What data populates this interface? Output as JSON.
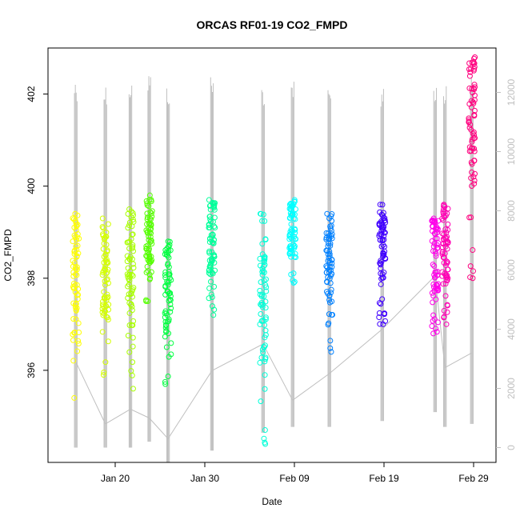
{
  "chart_data": {
    "type": "scatter",
    "title": "ORCAS RF01-19 CO2_FMPD",
    "xlabel": "Date",
    "ylabel": "CO2_FMPD",
    "x_ticks": [
      "Jan 20",
      "Jan 30",
      "Feb 09",
      "Feb 19",
      "Feb 29"
    ],
    "x_tick_days": [
      20,
      30,
      40,
      50,
      60
    ],
    "xlim_days": [
      12.5,
      62.5
    ],
    "ylim": [
      394.0,
      403.0
    ],
    "y_ticks": [
      396,
      398,
      400,
      402
    ],
    "y2_ticks": [
      0,
      2000,
      4000,
      6000,
      8000,
      10000,
      12000
    ],
    "y2_lim": [
      -500,
      13500
    ],
    "y2_color": "#bfbfbf",
    "flights": [
      {
        "day": 15.6,
        "min": 395.4,
        "max": 399.4,
        "color": "#ffff00",
        "alt_low": 800,
        "alt_high": 12500,
        "alt_base": 2900
      },
      {
        "day": 18.9,
        "min": 395.9,
        "max": 399.3,
        "color": "#d4ff00",
        "alt_low": 800,
        "alt_high": 12300,
        "alt_base": 800
      },
      {
        "day": 21.7,
        "min": 395.6,
        "max": 399.5,
        "color": "#a8ff00",
        "alt_low": 800,
        "alt_high": 12500,
        "alt_base": 1300
      },
      {
        "day": 23.8,
        "min": 397.5,
        "max": 399.8,
        "color": "#55ff00",
        "alt_low": 1000,
        "alt_high": 12700,
        "alt_base": 1000
      },
      {
        "day": 25.9,
        "min": 395.7,
        "max": 398.8,
        "color": "#00ff40",
        "alt_low": 300,
        "alt_high": 12300,
        "alt_base": 300
      },
      {
        "day": 30.8,
        "min": 397.2,
        "max": 399.7,
        "color": "#00ff9a",
        "alt_low": 700,
        "alt_high": 12600,
        "alt_base": 2600
      },
      {
        "day": 36.5,
        "min": 394.4,
        "max": 399.4,
        "color": "#00ffd8",
        "alt_low": 1300,
        "alt_high": 12300,
        "alt_base": 3500
      },
      {
        "day": 39.8,
        "min": 397.9,
        "max": 399.7,
        "color": "#00ffff",
        "alt_low": 1500,
        "alt_high": 12500,
        "alt_base": 1600
      },
      {
        "day": 43.9,
        "min": 396.4,
        "max": 399.4,
        "color": "#0080ff",
        "alt_low": 1500,
        "alt_high": 12200,
        "alt_base": 2500
      },
      {
        "day": 49.8,
        "min": 397.0,
        "max": 399.6,
        "color": "#4000ff",
        "alt_low": 1700,
        "alt_high": 12300,
        "alt_base": 4000
      },
      {
        "day": 55.7,
        "min": 396.8,
        "max": 399.3,
        "color": "#ff00ea",
        "alt_low": 2000,
        "alt_high": 12400,
        "alt_base": 5800
      },
      {
        "day": 56.8,
        "min": 397.0,
        "max": 399.6,
        "color": "#ff00b4",
        "alt_low": 1500,
        "alt_high": 12300,
        "alt_base": 2700
      },
      {
        "day": 59.8,
        "min": 398.0,
        "max": 402.8,
        "color": "#ff007f",
        "alt_low": 1600,
        "alt_high": 12600,
        "alt_base": 3200
      }
    ]
  }
}
